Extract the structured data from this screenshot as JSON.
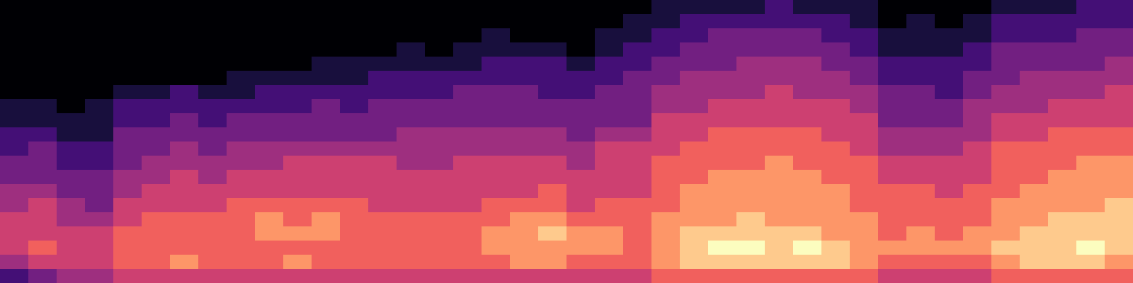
{
  "chart_data": {
    "type": "heatmap",
    "tick_labels": false,
    "zlim": [
      0,
      9
    ],
    "cells": [
      [
        0,
        0,
        0,
        0,
        0,
        0,
        0,
        0,
        0,
        0,
        0,
        0,
        0,
        0,
        0,
        0,
        0,
        0,
        0,
        0,
        0,
        0,
        0,
        1,
        1,
        1,
        1,
        2,
        1,
        1,
        1,
        0,
        0,
        0,
        0,
        1,
        1,
        1,
        2,
        2
      ],
      [
        0,
        0,
        0,
        0,
        0,
        0,
        0,
        0,
        0,
        0,
        0,
        0,
        0,
        0,
        0,
        0,
        0,
        0,
        0,
        0,
        0,
        0,
        1,
        1,
        2,
        2,
        2,
        2,
        2,
        2,
        1,
        0,
        1,
        0,
        1,
        2,
        2,
        2,
        2,
        2
      ],
      [
        0,
        0,
        0,
        0,
        0,
        0,
        0,
        0,
        0,
        0,
        0,
        0,
        0,
        0,
        0,
        0,
        0,
        1,
        0,
        0,
        0,
        1,
        1,
        2,
        2,
        3,
        3,
        3,
        3,
        2,
        2,
        1,
        1,
        1,
        1,
        2,
        2,
        2,
        3,
        3
      ],
      [
        0,
        0,
        0,
        0,
        0,
        0,
        0,
        0,
        0,
        0,
        0,
        0,
        0,
        0,
        1,
        0,
        1,
        1,
        1,
        1,
        0,
        1,
        2,
        2,
        3,
        3,
        3,
        3,
        3,
        3,
        2,
        1,
        1,
        1,
        2,
        3,
        3,
        3,
        3,
        3
      ],
      [
        0,
        0,
        0,
        0,
        0,
        0,
        0,
        0,
        0,
        0,
        0,
        1,
        1,
        1,
        1,
        1,
        1,
        2,
        2,
        2,
        1,
        2,
        2,
        3,
        3,
        3,
        4,
        4,
        4,
        3,
        3,
        2,
        2,
        2,
        2,
        3,
        3,
        3,
        3,
        4
      ],
      [
        0,
        0,
        0,
        0,
        0,
        0,
        0,
        0,
        1,
        1,
        1,
        1,
        1,
        2,
        2,
        2,
        2,
        2,
        2,
        2,
        2,
        2,
        3,
        3,
        4,
        4,
        4,
        4,
        4,
        4,
        3,
        2,
        2,
        2,
        3,
        3,
        4,
        4,
        4,
        4
      ],
      [
        0,
        0,
        0,
        0,
        1,
        1,
        2,
        1,
        1,
        2,
        2,
        2,
        2,
        2,
        2,
        2,
        3,
        3,
        3,
        2,
        2,
        3,
        3,
        4,
        4,
        4,
        4,
        5,
        4,
        4,
        4,
        3,
        3,
        2,
        3,
        4,
        4,
        4,
        4,
        5
      ],
      [
        1,
        1,
        0,
        1,
        2,
        2,
        2,
        2,
        2,
        2,
        2,
        3,
        2,
        3,
        3,
        3,
        3,
        3,
        3,
        3,
        3,
        3,
        3,
        4,
        4,
        5,
        5,
        5,
        5,
        5,
        4,
        3,
        3,
        3,
        4,
        4,
        4,
        5,
        5,
        5
      ],
      [
        1,
        1,
        1,
        1,
        2,
        2,
        3,
        2,
        3,
        3,
        3,
        3,
        3,
        3,
        3,
        3,
        3,
        3,
        3,
        3,
        3,
        3,
        3,
        5,
        5,
        5,
        5,
        5,
        5,
        5,
        5,
        3,
        3,
        3,
        4,
        5,
        5,
        5,
        5,
        5
      ],
      [
        2,
        2,
        1,
        1,
        3,
        3,
        3,
        3,
        3,
        3,
        3,
        3,
        3,
        3,
        4,
        4,
        4,
        4,
        4,
        4,
        3,
        4,
        4,
        5,
        5,
        6,
        6,
        6,
        6,
        5,
        5,
        4,
        4,
        4,
        4,
        5,
        5,
        6,
        6,
        6
      ],
      [
        2,
        3,
        2,
        2,
        3,
        3,
        4,
        3,
        4,
        4,
        4,
        4,
        4,
        4,
        4,
        4,
        4,
        4,
        4,
        4,
        4,
        5,
        5,
        5,
        6,
        6,
        6,
        6,
        6,
        6,
        5,
        4,
        4,
        4,
        5,
        6,
        6,
        6,
        6,
        6
      ],
      [
        3,
        3,
        2,
        2,
        3,
        4,
        4,
        4,
        4,
        4,
        5,
        5,
        5,
        5,
        4,
        4,
        5,
        5,
        5,
        5,
        4,
        5,
        5,
        6,
        6,
        6,
        6,
        7,
        6,
        6,
        6,
        5,
        5,
        5,
        5,
        6,
        6,
        6,
        7,
        7
      ],
      [
        3,
        3,
        3,
        3,
        4,
        4,
        5,
        4,
        5,
        5,
        5,
        5,
        5,
        5,
        5,
        5,
        5,
        5,
        5,
        5,
        5,
        5,
        5,
        6,
        6,
        7,
        7,
        7,
        7,
        6,
        6,
        5,
        5,
        5,
        5,
        6,
        6,
        7,
        7,
        7
      ],
      [
        4,
        4,
        3,
        3,
        4,
        5,
        5,
        5,
        5,
        5,
        5,
        5,
        5,
        5,
        5,
        5,
        5,
        5,
        5,
        6,
        5,
        5,
        5,
        6,
        7,
        7,
        7,
        7,
        7,
        7,
        6,
        6,
        6,
        5,
        6,
        6,
        7,
        7,
        7,
        7
      ],
      [
        4,
        5,
        4,
        3,
        5,
        5,
        5,
        5,
        6,
        6,
        6,
        6,
        6,
        5,
        5,
        5,
        5,
        6,
        6,
        6,
        5,
        6,
        6,
        6,
        7,
        7,
        7,
        7,
        7,
        7,
        6,
        6,
        6,
        6,
        6,
        7,
        7,
        7,
        7,
        8
      ],
      [
        5,
        5,
        4,
        4,
        5,
        6,
        6,
        6,
        6,
        7,
        6,
        7,
        6,
        6,
        6,
        6,
        6,
        6,
        7,
        7,
        6,
        6,
        6,
        7,
        7,
        7,
        8,
        7,
        7,
        7,
        7,
        6,
        6,
        6,
        6,
        7,
        7,
        8,
        8,
        8
      ],
      [
        5,
        5,
        5,
        5,
        6,
        6,
        6,
        6,
        6,
        7,
        7,
        7,
        6,
        6,
        6,
        6,
        6,
        7,
        7,
        8,
        7,
        7,
        6,
        7,
        8,
        8,
        8,
        8,
        8,
        7,
        7,
        6,
        7,
        6,
        7,
        7,
        8,
        8,
        8,
        8
      ],
      [
        5,
        6,
        5,
        5,
        6,
        6,
        6,
        6,
        6,
        6,
        6,
        6,
        6,
        6,
        6,
        6,
        6,
        7,
        7,
        7,
        7,
        7,
        6,
        7,
        8,
        9,
        9,
        8,
        9,
        8,
        7,
        7,
        7,
        7,
        7,
        8,
        8,
        8,
        9,
        8
      ],
      [
        4,
        5,
        5,
        5,
        6,
        6,
        7,
        6,
        6,
        6,
        7,
        6,
        6,
        6,
        6,
        6,
        6,
        6,
        7,
        7,
        6,
        6,
        6,
        7,
        8,
        8,
        8,
        8,
        8,
        8,
        7,
        6,
        6,
        6,
        6,
        7,
        8,
        8,
        8,
        7
      ],
      [
        2,
        3,
        4,
        4,
        5,
        5,
        5,
        5,
        5,
        5,
        5,
        5,
        5,
        5,
        5,
        5,
        5,
        5,
        5,
        5,
        5,
        5,
        5,
        6,
        6,
        6,
        6,
        6,
        6,
        6,
        6,
        5,
        5,
        5,
        5,
        6,
        6,
        6,
        6,
        6
      ]
    ]
  }
}
